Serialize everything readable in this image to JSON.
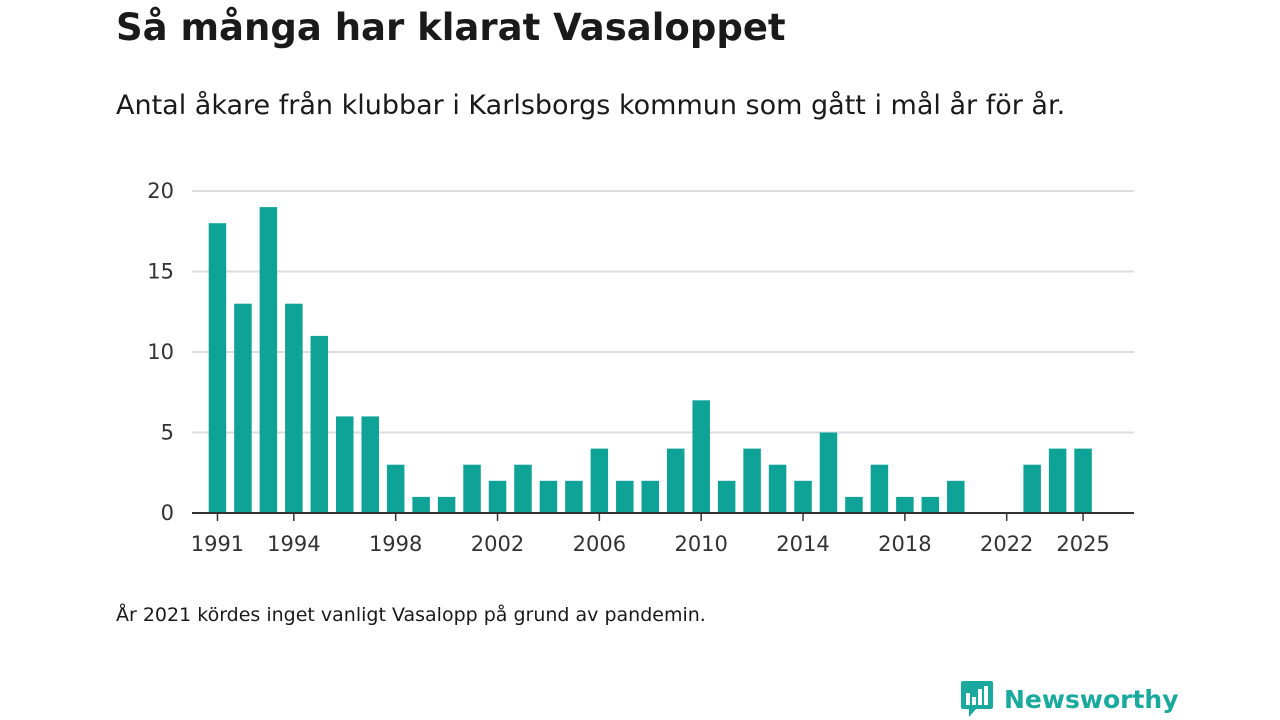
{
  "header": {
    "title": "Så många har klarat Vasaloppet",
    "subtitle": "Antal åkare från klubbar i Karlsborgs kommun som gått i mål år för år."
  },
  "footer": {
    "note": "År 2021 kördes inget vanligt Vasalopp på grund av pandemin.",
    "brand": "Newsworthy"
  },
  "colors": {
    "bar": "#0fa398",
    "grid": "#dddddd",
    "axis": "#333333",
    "brand": "#19a99d"
  },
  "chart_data": {
    "type": "bar",
    "title": "Så många har klarat Vasaloppet",
    "subtitle": "Antal åkare från klubbar i Karlsborgs kommun som gått i mål år för år.",
    "xlabel": "",
    "ylabel": "",
    "ylim": [
      0,
      20
    ],
    "yticks": [
      0,
      5,
      10,
      15,
      20
    ],
    "xticks": [
      1991,
      1994,
      1998,
      2002,
      2006,
      2010,
      2014,
      2018,
      2022,
      2025
    ],
    "xlim": [
      1990,
      2027
    ],
    "grid": true,
    "categories": [
      1991,
      1992,
      1993,
      1994,
      1995,
      1996,
      1997,
      1998,
      1999,
      2000,
      2001,
      2002,
      2003,
      2004,
      2005,
      2006,
      2007,
      2008,
      2009,
      2010,
      2011,
      2012,
      2013,
      2014,
      2015,
      2016,
      2017,
      2018,
      2019,
      2020,
      2021,
      2022,
      2023,
      2024,
      2025
    ],
    "values": [
      18,
      13,
      19,
      13,
      11,
      6,
      6,
      3,
      1,
      1,
      3,
      2,
      3,
      2,
      2,
      4,
      2,
      2,
      4,
      7,
      2,
      4,
      3,
      2,
      5,
      1,
      3,
      1,
      1,
      2,
      0,
      0,
      3,
      4,
      4
    ]
  }
}
